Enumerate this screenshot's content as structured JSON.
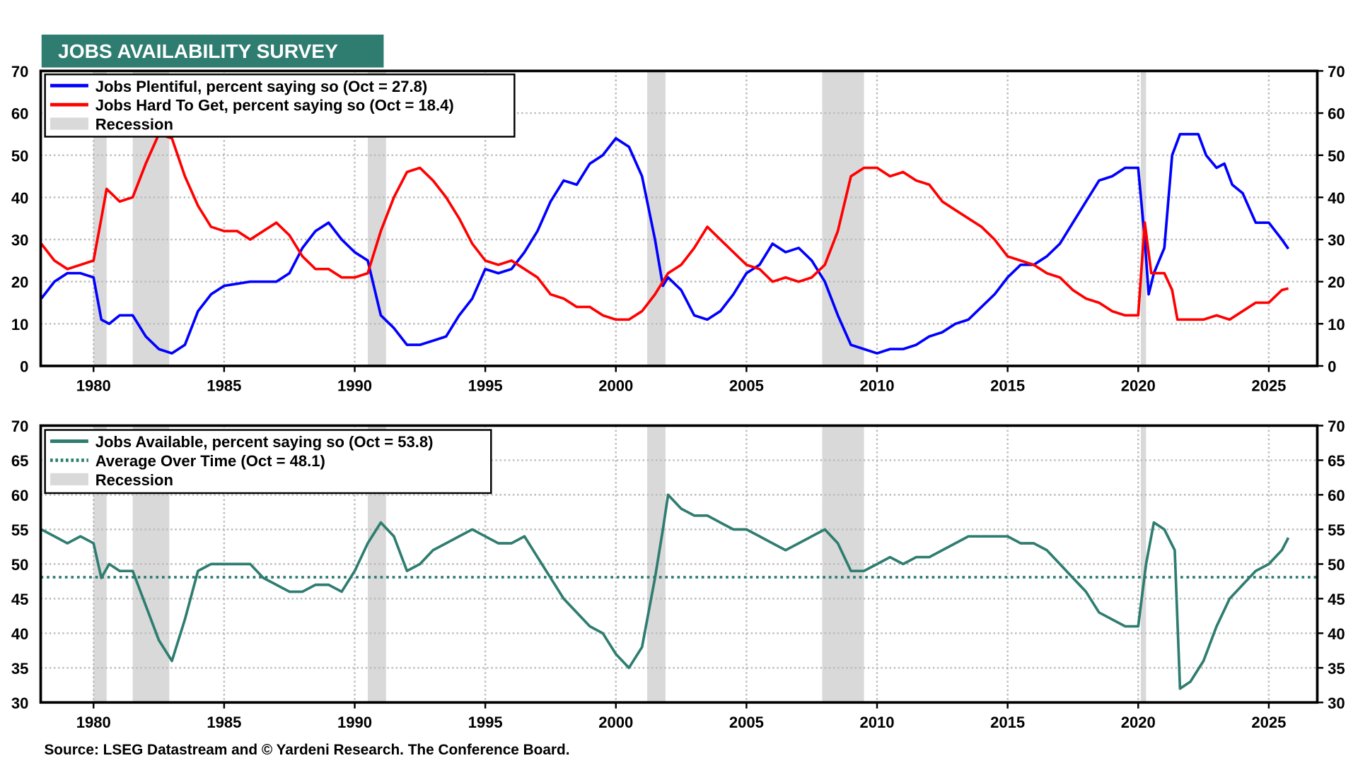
{
  "title": "JOBS AVAILABILITY SURVEY",
  "source": "Source: LSEG Datastream and © Yardeni Research. The Conference Board.",
  "colors": {
    "title_bg": "#2e7d70",
    "plentiful": "#0000ff",
    "hard": "#ff0000",
    "available": "#2e7d70",
    "recession": "#d9d9d9"
  },
  "x_ticks": [
    "1980",
    "1985",
    "1990",
    "1995",
    "2000",
    "2005",
    "2010",
    "2015",
    "2020",
    "2025"
  ],
  "recessions": [
    [
      1980.0,
      1980.5
    ],
    [
      1981.5,
      1982.9
    ],
    [
      1990.5,
      1991.2
    ],
    [
      2001.2,
      2001.9
    ],
    [
      2007.9,
      2009.5
    ],
    [
      2020.1,
      2020.3
    ]
  ],
  "chart_data": [
    {
      "type": "line",
      "xlim": [
        1978,
        2027
      ],
      "ylim": [
        0,
        70
      ],
      "yticks": [
        0,
        10,
        20,
        30,
        40,
        50,
        60,
        70
      ],
      "grid": true,
      "legend": "top-left",
      "legend_entries": [
        "Jobs Plentiful, percent saying so (Oct = 27.8)",
        "Jobs Hard To Get, percent saying so (Oct = 18.4)",
        "Recession"
      ],
      "series": [
        {
          "name": "Jobs Plentiful, percent saying so (Oct = 27.8)",
          "color": "#0000ff",
          "x": [
            1978,
            1978.5,
            1979,
            1979.5,
            1980,
            1980.3,
            1980.6,
            1981,
            1981.5,
            1982,
            1982.5,
            1983,
            1983.5,
            1984,
            1984.5,
            1985,
            1986,
            1987,
            1987.5,
            1988,
            1988.5,
            1989,
            1989.5,
            1990,
            1990.5,
            1991,
            1991.5,
            1992,
            1992.5,
            1993,
            1993.5,
            1994,
            1994.5,
            1995,
            1995.5,
            1996,
            1996.5,
            1997,
            1997.5,
            1998,
            1998.5,
            1999,
            1999.5,
            2000,
            2000.5,
            2001,
            2001.5,
            2001.8,
            2002,
            2002.5,
            2003,
            2003.5,
            2004,
            2004.5,
            2005,
            2005.5,
            2006,
            2006.5,
            2007,
            2007.5,
            2008,
            2008.5,
            2009,
            2009.5,
            2010,
            2010.5,
            2011,
            2011.5,
            2012,
            2012.5,
            2013,
            2013.5,
            2014,
            2014.5,
            2015,
            2015.5,
            2016,
            2016.5,
            2017,
            2017.5,
            2018,
            2018.5,
            2019,
            2019.5,
            2020,
            2020.25,
            2020.4,
            2020.6,
            2021,
            2021.3,
            2021.6,
            2022,
            2022.3,
            2022.6,
            2023,
            2023.3,
            2023.6,
            2024,
            2024.5,
            2025,
            2025.5,
            2025.75
          ],
          "y": [
            16,
            20,
            22,
            22,
            21,
            11,
            10,
            12,
            12,
            7,
            4,
            3,
            5,
            13,
            17,
            19,
            20,
            20,
            22,
            28,
            32,
            34,
            30,
            27,
            25,
            12,
            9,
            5,
            5,
            6,
            7,
            12,
            16,
            23,
            22,
            23,
            27,
            32,
            39,
            44,
            43,
            48,
            50,
            54,
            52,
            45,
            30,
            19,
            21,
            18,
            12,
            11,
            13,
            17,
            22,
            24,
            29,
            27,
            28,
            25,
            20,
            12,
            5,
            4,
            3,
            4,
            4,
            5,
            7,
            8,
            10,
            11,
            14,
            17,
            21,
            24,
            24,
            26,
            29,
            34,
            39,
            44,
            45,
            47,
            47,
            30,
            17,
            22,
            28,
            50,
            55,
            55,
            55,
            50,
            47,
            48,
            43,
            41,
            34,
            34,
            30,
            27.8
          ]
        },
        {
          "name": "Jobs Hard To Get, percent saying so (Oct = 18.4)",
          "color": "#ff0000",
          "x": [
            1978,
            1978.5,
            1979,
            1979.5,
            1980,
            1980.3,
            1980.5,
            1981,
            1981.5,
            1982,
            1982.5,
            1983,
            1983.5,
            1984,
            1984.5,
            1985,
            1985.5,
            1986,
            1986.5,
            1987,
            1987.5,
            1988,
            1988.5,
            1989,
            1989.5,
            1990,
            1990.5,
            1991,
            1991.5,
            1992,
            1992.5,
            1993,
            1993.5,
            1994,
            1994.5,
            1995,
            1995.5,
            1996,
            1996.5,
            1997,
            1997.5,
            1998,
            1998.5,
            1999,
            1999.5,
            2000,
            2000.5,
            2001,
            2001.5,
            2002,
            2002.5,
            2003,
            2003.5,
            2004,
            2004.5,
            2005,
            2005.5,
            2006,
            2006.5,
            2007,
            2007.5,
            2008,
            2008.5,
            2009,
            2009.5,
            2010,
            2010.5,
            2011,
            2011.5,
            2012,
            2012.5,
            2013,
            2013.5,
            2014,
            2014.5,
            2015,
            2015.5,
            2016,
            2016.5,
            2017,
            2017.5,
            2018,
            2018.5,
            2019,
            2019.5,
            2020,
            2020.25,
            2020.5,
            2021,
            2021.3,
            2021.5,
            2022,
            2022.5,
            2023,
            2023.5,
            2024,
            2024.5,
            2025,
            2025.5,
            2025.75
          ],
          "y": [
            29,
            25,
            23,
            24,
            25,
            35,
            42,
            39,
            40,
            48,
            55,
            54,
            45,
            38,
            33,
            32,
            32,
            30,
            32,
            34,
            31,
            26,
            23,
            23,
            21,
            21,
            22,
            32,
            40,
            46,
            47,
            44,
            40,
            35,
            29,
            25,
            24,
            25,
            23,
            21,
            17,
            16,
            14,
            14,
            12,
            11,
            11,
            13,
            17,
            22,
            24,
            28,
            33,
            30,
            27,
            24,
            23,
            20,
            21,
            20,
            21,
            24,
            32,
            45,
            47,
            47,
            45,
            46,
            44,
            43,
            39,
            37,
            35,
            33,
            30,
            26,
            25,
            24,
            22,
            21,
            18,
            16,
            15,
            13,
            12,
            12,
            34,
            22,
            22,
            18,
            11,
            11,
            11,
            12,
            11,
            13,
            15,
            15,
            18,
            18.4
          ]
        }
      ]
    },
    {
      "type": "line",
      "xlim": [
        1978,
        2027
      ],
      "ylim": [
        30,
        70
      ],
      "yticks": [
        30,
        35,
        40,
        45,
        50,
        55,
        60,
        65,
        70
      ],
      "grid": true,
      "legend": "top-left",
      "legend_entries": [
        "Jobs Available, percent saying so (Oct = 53.8)",
        "Average Over Time (Oct = 48.1)",
        "Recession"
      ],
      "average": 48.1,
      "series": [
        {
          "name": "Jobs Available, percent saying so (Oct = 53.8)",
          "color": "#2e7d70",
          "x": [
            1978,
            1978.5,
            1979,
            1979.5,
            1980,
            1980.3,
            1980.6,
            1981,
            1981.5,
            1982,
            1982.5,
            1983,
            1983.5,
            1984,
            1984.5,
            1985,
            1985.5,
            1986,
            1986.5,
            1987,
            1987.5,
            1988,
            1988.5,
            1989,
            1989.5,
            1990,
            1990.5,
            1991,
            1991.5,
            1992,
            1992.5,
            1993,
            1993.5,
            1994,
            1994.5,
            1995,
            1995.5,
            1996,
            1996.5,
            1997,
            1997.5,
            1998,
            1998.5,
            1999,
            1999.5,
            2000,
            2000.5,
            2001,
            2001.5,
            2001.8,
            2002,
            2002.5,
            2003,
            2003.5,
            2004,
            2004.5,
            2005,
            2005.5,
            2006,
            2006.5,
            2007,
            2007.5,
            2008,
            2008.5,
            2009,
            2009.5,
            2010,
            2010.5,
            2011,
            2011.5,
            2012,
            2012.5,
            2013,
            2013.5,
            2014,
            2014.5,
            2015,
            2015.5,
            2016,
            2016.5,
            2017,
            2017.5,
            2018,
            2018.5,
            2019,
            2019.5,
            2020,
            2020.3,
            2020.6,
            2021,
            2021.4,
            2021.6,
            2022,
            2022.5,
            2023,
            2023.5,
            2024,
            2024.5,
            2025,
            2025.5,
            2025.75
          ],
          "y": [
            55,
            54,
            53,
            54,
            53,
            48,
            50,
            49,
            49,
            44,
            39,
            36,
            42,
            49,
            50,
            50,
            50,
            50,
            48,
            47,
            46,
            46,
            47,
            47,
            46,
            49,
            53,
            56,
            54,
            49,
            50,
            52,
            53,
            54,
            55,
            54,
            53,
            53,
            54,
            51,
            48,
            45,
            43,
            41,
            40,
            37,
            35,
            38,
            48,
            55,
            60,
            58,
            57,
            57,
            56,
            55,
            55,
            54,
            53,
            52,
            53,
            54,
            55,
            53,
            49,
            49,
            50,
            51,
            50,
            51,
            51,
            52,
            53,
            54,
            54,
            54,
            54,
            53,
            53,
            52,
            50,
            48,
            46,
            43,
            42,
            41,
            41,
            50,
            56,
            55,
            52,
            32,
            33,
            36,
            41,
            45,
            47,
            49,
            50,
            52,
            53.8
          ]
        },
        {
          "name": "Average Over Time (Oct = 48.1)",
          "color": "#2e7d70",
          "y_constant": 48.1
        }
      ]
    }
  ]
}
